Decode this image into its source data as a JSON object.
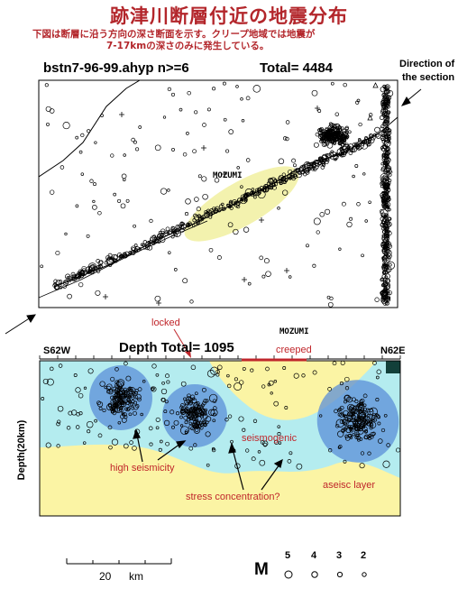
{
  "title": "跡津川断層付近の地震分布",
  "subtitle": {
    "line1": "下図は断層に沿う方向の深さ断面を示す。クリープ地域では地震が",
    "line2": "7-17kmの深さのみに発生している。"
  },
  "map": {
    "file_label": "bstn7-96-99.ahyp n>=6",
    "total_label": "Total=  4484",
    "place_label": "MOZUMI",
    "direction_note_line1": "Direction of",
    "direction_note_line2": "the section"
  },
  "section": {
    "left_dir": "S62W",
    "right_dir": "N62E",
    "depth_total_label": "Depth    Total=  1095",
    "place_label": "MOZUMI",
    "y_axis_label": "Depth(20km)",
    "locked_label": "locked",
    "creeped_label": "creeped",
    "seismogenic_label": "seismogenic",
    "high_seismicity_label": "high seismicity",
    "stress_label": "stress concentration?",
    "aseismic_label": "aseisc layer"
  },
  "scale": {
    "value": "20",
    "unit": "km"
  },
  "magnitude_legend": {
    "label": "M",
    "values": [
      "5",
      "4",
      "3",
      "2"
    ]
  },
  "colors": {
    "title_red": "#b3262b",
    "seismogenic_cyan": "#b4ecef",
    "aseismic_yellow": "#fbf4a4",
    "cluster_blue": "#5b8fd8",
    "ellipse_yellow": "#f1f0a0"
  }
}
